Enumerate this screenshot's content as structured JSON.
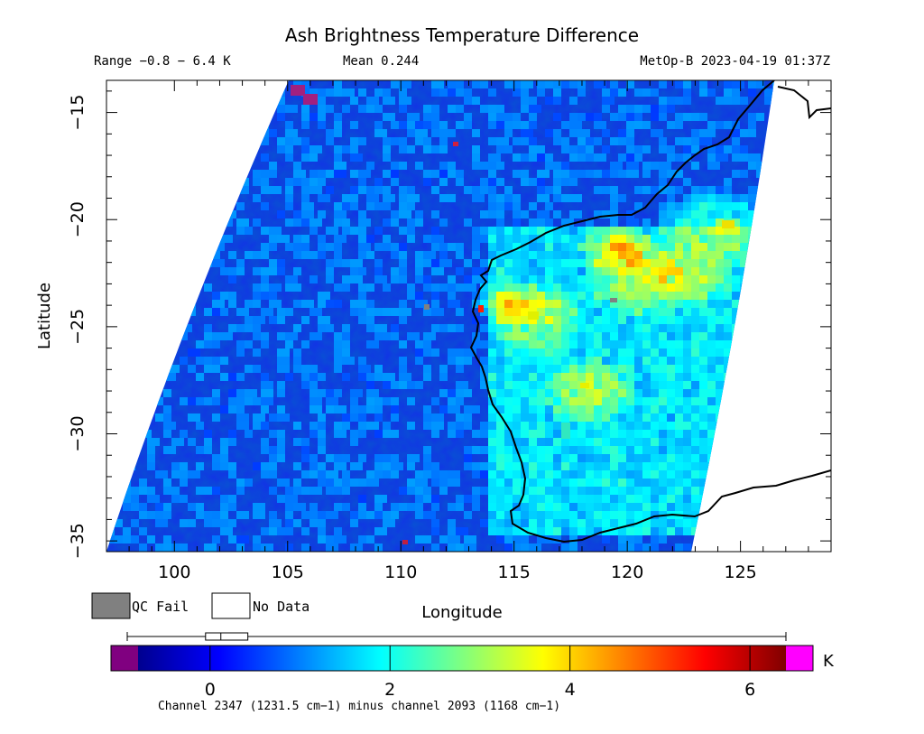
{
  "title": "Ash Brightness Temperature Difference",
  "range_text": "Range −0.8 − 6.4 K",
  "mean_text": "Mean 0.244",
  "satellite_time": "MetOp-B 2023-04-19 01:37Z",
  "map": {
    "x_label": "Longitude",
    "y_label": "Latitude",
    "lon_range": [
      97,
      129
    ],
    "lat_range": [
      -35.5,
      -13.5
    ],
    "x_ticks": [
      "100",
      "105",
      "110",
      "115",
      "120",
      "125"
    ],
    "x_tick_values": [
      100,
      105,
      110,
      115,
      120,
      125
    ],
    "y_ticks": [
      "−15",
      "−20",
      "−25",
      "−30",
      "−35"
    ],
    "y_tick_values": [
      -15,
      -20,
      -25,
      -30,
      -35
    ]
  },
  "legend": {
    "qc_fail": "QC Fail",
    "no_data": "No Data",
    "qc_fail_color": "#808080",
    "no_data_color": "#ffffff"
  },
  "colorbar": {
    "range": [
      -0.8,
      6.4
    ],
    "ticks": [
      "0",
      "2",
      "4",
      "6"
    ],
    "tick_values": [
      0,
      2,
      4,
      6
    ],
    "unit": "K",
    "caption": "Channel 2347 (1231.5 cm−1) minus channel 2093 (1168 cm−1)",
    "under_color": "#800080",
    "over_color": "#ff00ff",
    "box_plot": {
      "min": -0.8,
      "q1": -0.05,
      "median": 0.12,
      "q3": 0.42,
      "max": 6.4
    }
  }
}
